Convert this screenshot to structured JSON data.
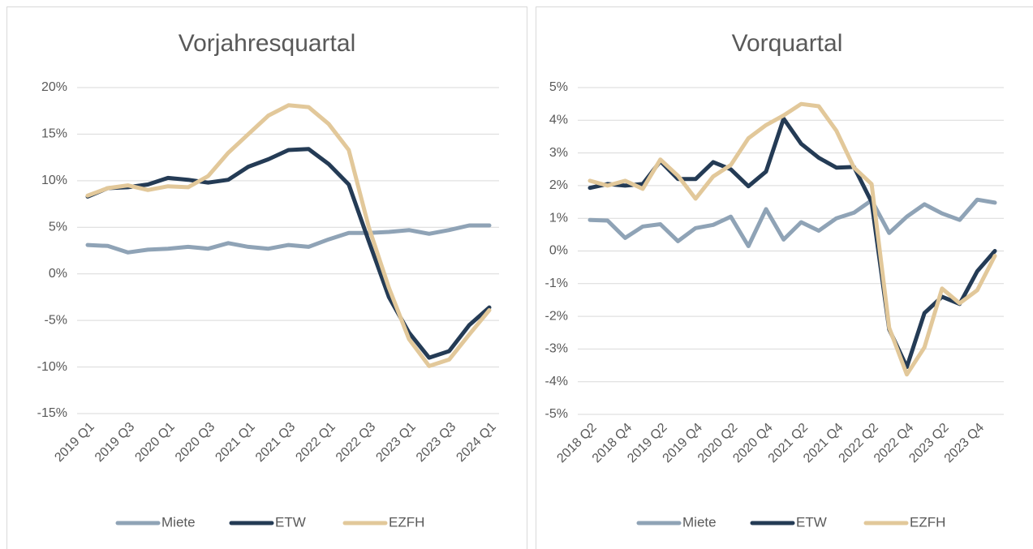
{
  "chart_data": [
    {
      "type": "line",
      "title": "Vorjahresquartal",
      "categories": [
        "2019 Q1",
        null,
        "2019 Q3",
        null,
        "2020 Q1",
        null,
        "2020 Q3",
        null,
        "2021 Q1",
        null,
        "2021 Q3",
        null,
        "2022 Q1",
        null,
        "2022 Q3",
        null,
        "2023 Q1",
        null,
        "2023 Q3",
        null,
        "2024 Q1"
      ],
      "series": [
        {
          "name": "Miete",
          "color": "#8fa3b6",
          "values": [
            3.1,
            3.0,
            2.3,
            2.6,
            2.7,
            2.9,
            2.7,
            3.3,
            2.9,
            2.7,
            3.1,
            2.9,
            3.7,
            4.4,
            4.4,
            4.5,
            4.7,
            4.3,
            4.7,
            5.2,
            5.2
          ]
        },
        {
          "name": "ETW",
          "color": "#243b55",
          "values": [
            8.3,
            9.2,
            9.3,
            9.6,
            10.3,
            10.1,
            9.8,
            10.1,
            11.5,
            12.3,
            13.3,
            13.4,
            11.8,
            9.6,
            3.5,
            -2.5,
            -6.3,
            -9.0,
            -8.3,
            -5.5,
            -3.6
          ]
        },
        {
          "name": "EZFH",
          "color": "#e2c89a",
          "values": [
            8.4,
            9.2,
            9.5,
            9.0,
            9.4,
            9.3,
            10.5,
            13.0,
            15.0,
            17.0,
            18.1,
            17.9,
            16.1,
            13.3,
            5.0,
            -1.5,
            -7.0,
            -9.9,
            -9.2,
            -6.5,
            -3.9
          ]
        }
      ],
      "ylim": [
        -15,
        20
      ],
      "yticks": [
        {
          "value": -15,
          "label": "-15%"
        },
        {
          "value": -10,
          "label": "-10%"
        },
        {
          "value": -5,
          "label": "-5%"
        },
        {
          "value": 0,
          "label": "0%"
        },
        {
          "value": 5,
          "label": "5%"
        },
        {
          "value": 10,
          "label": "10%"
        },
        {
          "value": 15,
          "label": "15%"
        },
        {
          "value": 20,
          "label": "20%"
        }
      ],
      "grid": true,
      "legend": "bottom"
    },
    {
      "type": "line",
      "title": "Vorquartal",
      "categories": [
        "2018 Q2",
        null,
        "2018 Q4",
        null,
        "2019 Q2",
        null,
        "2019 Q4",
        null,
        "2020 Q2",
        null,
        "2020 Q4",
        null,
        "2021 Q2",
        null,
        "2021 Q4",
        null,
        "2022 Q2",
        null,
        "2022 Q4",
        null,
        "2023 Q2",
        null,
        "2023 Q4",
        null
      ],
      "series": [
        {
          "name": "Miete",
          "color": "#8fa3b6",
          "values": [
            0.95,
            0.93,
            0.4,
            0.75,
            0.82,
            0.3,
            0.7,
            0.8,
            1.05,
            0.15,
            1.28,
            0.35,
            0.88,
            0.62,
            1.0,
            1.17,
            1.55,
            0.55,
            1.05,
            1.43,
            1.15,
            0.95,
            1.57,
            1.48
          ]
        },
        {
          "name": "ETW",
          "color": "#243b55",
          "values": [
            1.93,
            2.05,
            2.0,
            2.05,
            2.75,
            2.2,
            2.2,
            2.72,
            2.5,
            1.98,
            2.43,
            4.05,
            3.28,
            2.85,
            2.55,
            2.57,
            1.5,
            -2.4,
            -3.55,
            -1.9,
            -1.4,
            -1.62,
            -0.62,
            0.0
          ]
        },
        {
          "name": "EZFH",
          "color": "#e2c89a",
          "values": [
            2.15,
            2.0,
            2.15,
            1.9,
            2.8,
            2.3,
            1.6,
            2.28,
            2.63,
            3.45,
            3.85,
            4.15,
            4.5,
            4.43,
            3.68,
            2.55,
            2.05,
            -2.35,
            -3.78,
            -2.95,
            -1.15,
            -1.6,
            -1.2,
            -0.15
          ]
        }
      ],
      "ylim": [
        -5,
        5
      ],
      "yticks": [
        {
          "value": -5,
          "label": "-5%"
        },
        {
          "value": -4,
          "label": "-4%"
        },
        {
          "value": -3,
          "label": "-3%"
        },
        {
          "value": -2,
          "label": "-2%"
        },
        {
          "value": -1,
          "label": "-1%"
        },
        {
          "value": 0,
          "label": "0%"
        },
        {
          "value": 1,
          "label": "1%"
        },
        {
          "value": 2,
          "label": "2%"
        },
        {
          "value": 3,
          "label": "3%"
        },
        {
          "value": 4,
          "label": "4%"
        },
        {
          "value": 5,
          "label": "5%"
        }
      ],
      "grid": true,
      "legend": "bottom"
    }
  ]
}
